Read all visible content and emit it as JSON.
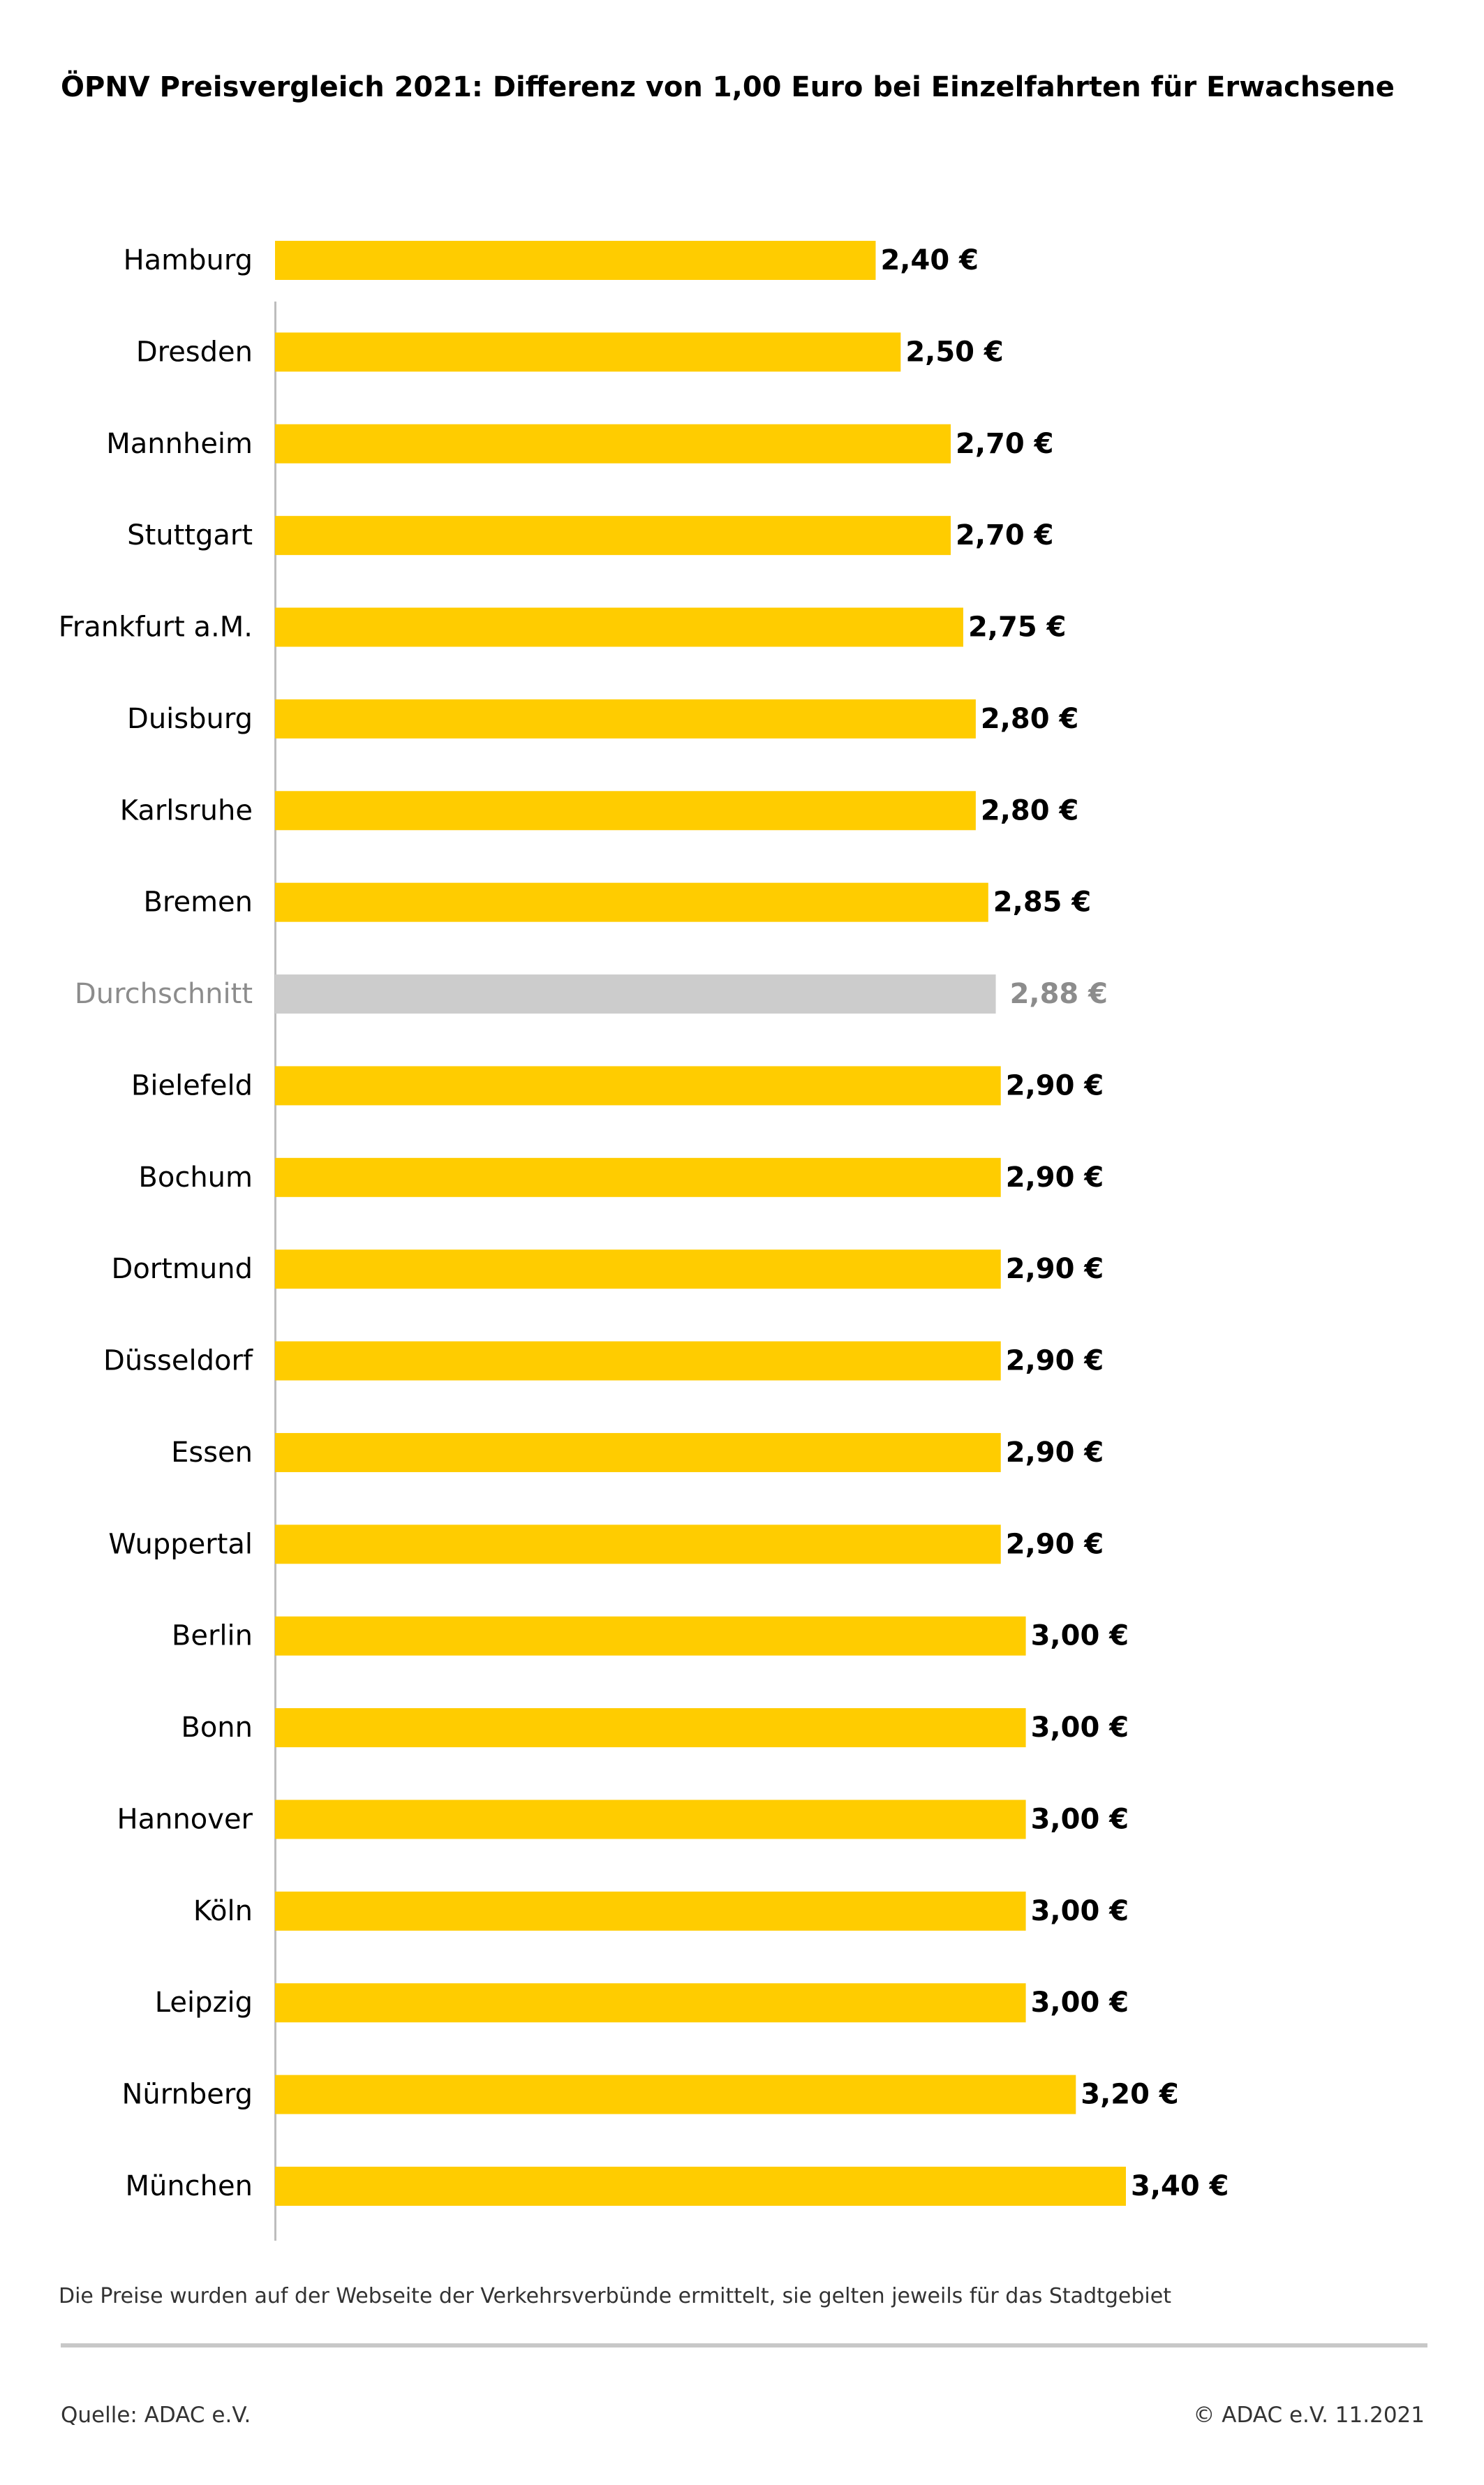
{
  "chart_data": {
    "type": "bar",
    "orientation": "horizontal",
    "title": "ÖPNV Preisvergleich 2021: Differenz von 1,00 Euro bei Einzelfahrten  für Erwachsene",
    "unit": "€",
    "categories": [
      "Hamburg",
      "Dresden",
      "Mannheim",
      "Stuttgart",
      "Frankfurt a.M.",
      "Duisburg",
      "Karlsruhe",
      "Bremen",
      "Durchschnitt",
      "Bielefeld",
      "Bochum",
      "Dortmund",
      "Düsseldorf",
      "Essen",
      "Wuppertal",
      "Berlin",
      "Bonn",
      "Hannover",
      "Köln",
      "Leipzig",
      "Nürnberg",
      "München"
    ],
    "values": [
      2.4,
      2.5,
      2.7,
      2.7,
      2.75,
      2.8,
      2.8,
      2.85,
      2.88,
      2.9,
      2.9,
      2.9,
      2.9,
      2.9,
      2.9,
      3.0,
      3.0,
      3.0,
      3.0,
      3.0,
      3.2,
      3.4
    ],
    "value_labels": [
      "2,40 €",
      "2,50 €",
      "2,70 €",
      "2,70 €",
      "2,75 €",
      "2,80 €",
      "2,80 €",
      "2,85 €",
      "2,88 €",
      "2,90 €",
      "2,90 €",
      "2,90 €",
      "2,90 €",
      "2,90 €",
      "2,90 €",
      "3,00 €",
      "3,00 €",
      "3,00 €",
      "3,00 €",
      "3,00 €",
      "3,20 €",
      "3,40 €"
    ],
    "highlight_category": "Durchschnitt",
    "xlim": [
      0,
      3.4
    ],
    "xlabel": "",
    "ylabel": "",
    "grid": false,
    "legend": "none"
  },
  "colors": {
    "bar": "#FFCC00",
    "average_bar": "#CCCCCC",
    "average_text": "#8C8C8C",
    "axis_line": "#BDBDBD"
  },
  "footnote": "Die Preise wurden auf der Webseite der Verkehrsverbünde ermittelt, sie gelten jeweils für das Stadtgebiet",
  "source": "Quelle: ADAC e.V.",
  "copyright": "© ADAC e.V.  11.2021"
}
